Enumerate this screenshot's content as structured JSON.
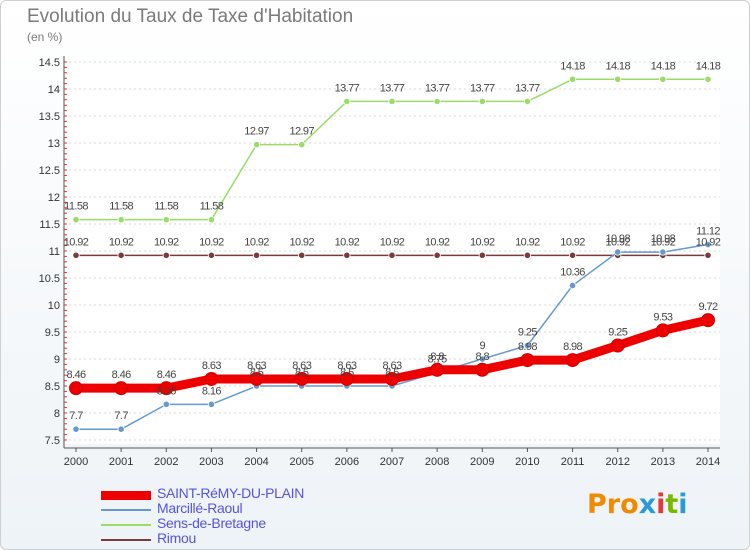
{
  "title": "Evolution du Taux de Taxe d'Habitation",
  "unit": "(en %)",
  "logo": {
    "text": "Proxiti",
    "colors": [
      "#f08a00",
      "#f08a00",
      "#f08a00",
      "#2a9bd7",
      "#e23a3a",
      "#7ab800",
      "#2a9bd7"
    ]
  },
  "chart_data": {
    "type": "line",
    "x": [
      "2000",
      "2001",
      "2002",
      "2003",
      "2004",
      "2005",
      "2006",
      "2007",
      "2008",
      "2009",
      "2010",
      "2011",
      "2012",
      "2013",
      "2014"
    ],
    "ylim": [
      7.5,
      14.5
    ],
    "yticks": [
      "7.5",
      "8",
      "8.5",
      "9",
      "9.5",
      "10",
      "10.5",
      "11",
      "11.5",
      "12",
      "12.5",
      "13",
      "13.5",
      "14",
      "14.5"
    ],
    "legend_position": "bottom",
    "series": [
      {
        "name": "SAINT-RéMY-DU-PLAIN",
        "color": "#ee0000",
        "width": 9,
        "label_offset": -10,
        "values": [
          8.46,
          8.46,
          8.46,
          8.63,
          8.63,
          8.63,
          8.63,
          8.63,
          8.8,
          8.8,
          8.98,
          8.98,
          9.25,
          9.53,
          9.72
        ],
        "labels": [
          "8.46",
          "8.46",
          "8.46",
          "8.63",
          "8.63",
          "8.63",
          "8.63",
          "8.63",
          "8.8",
          "8.8",
          "8.98",
          "8.98",
          "9.25",
          "9.53",
          "9.72"
        ]
      },
      {
        "name": "Marcillé-Raoul",
        "color": "#6699cc",
        "width": 1.5,
        "label_offset": -10,
        "values": [
          7.7,
          7.7,
          8.16,
          8.16,
          8.5,
          8.5,
          8.5,
          8.5,
          8.75,
          9,
          9.25,
          10.36,
          10.98,
          10.98,
          11.12
        ],
        "labels": [
          "7.7",
          "7.7",
          "8.16",
          "8.16",
          "8.5",
          "8.5",
          "8.5",
          "8.5",
          "8.75",
          "9",
          "9.25",
          "10.36",
          "10.98",
          "10.98",
          "11.12"
        ]
      },
      {
        "name": "Sens-de-Bretagne",
        "color": "#99dd66",
        "width": 1.5,
        "label_offset": -10,
        "values": [
          11.58,
          11.58,
          11.58,
          11.58,
          12.97,
          12.97,
          13.77,
          13.77,
          13.77,
          13.77,
          13.77,
          14.18,
          14.18,
          14.18,
          14.18
        ],
        "labels": [
          "11.58",
          "11.58",
          "11.58",
          "11.58",
          "12.97",
          "12.97",
          "13.77",
          "13.77",
          "13.77",
          "13.77",
          "13.77",
          "14.18",
          "14.18",
          "14.18",
          "14.18"
        ]
      },
      {
        "name": "Rimou",
        "color": "#7a3b3b",
        "width": 1.5,
        "label_offset": -10,
        "values": [
          10.92,
          10.92,
          10.92,
          10.92,
          10.92,
          10.92,
          10.92,
          10.92,
          10.92,
          10.92,
          10.92,
          10.92,
          10.92,
          10.92,
          10.92
        ],
        "labels": [
          "10.92",
          "10.92",
          "10.92",
          "10.92",
          "10.92",
          "10.92",
          "10.92",
          "10.92",
          "10.92",
          "10.92",
          "10.92",
          "10.92",
          "10.92",
          "10.92",
          "10.92"
        ]
      }
    ]
  }
}
